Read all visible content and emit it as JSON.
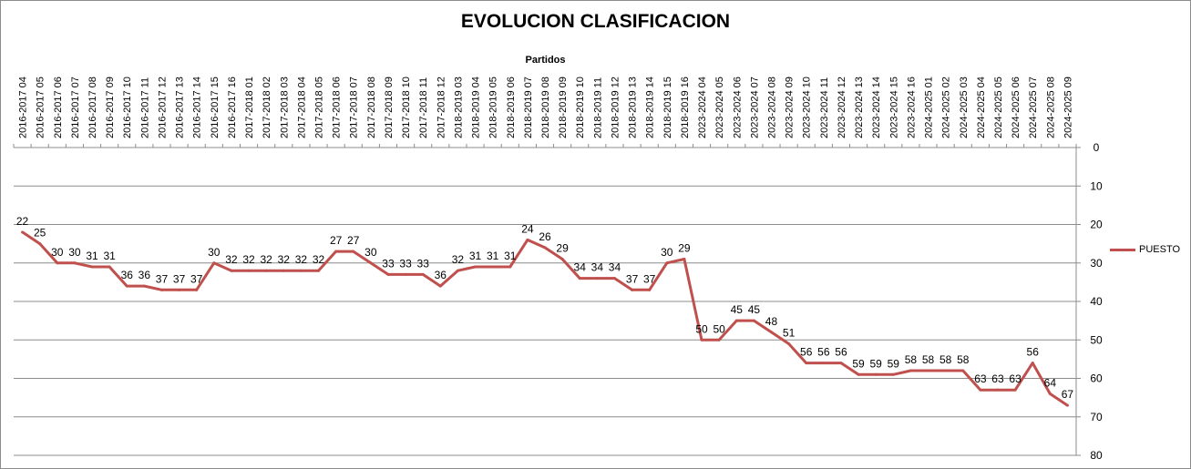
{
  "chart_data": {
    "type": "line",
    "title": "EVOLUCION CLASIFICACION",
    "xlabel": "Partidos",
    "ylabel": "",
    "ylim": [
      0,
      80
    ],
    "y_inverted": true,
    "y_axis_side": "right",
    "y_ticks": [
      0,
      10,
      20,
      30,
      40,
      50,
      60,
      70,
      80
    ],
    "grid": "horizontal",
    "legend_position": "right",
    "categories": [
      "2016-2017 04",
      "2016-2017 05",
      "2016-2017 06",
      "2016-2017 07",
      "2016-2017 08",
      "2016-2017 09",
      "2016-2017 10",
      "2016-2017 11",
      "2016-2017 12",
      "2016-2017 13",
      "2016-2017 14",
      "2016-2017 15",
      "2016-2017 16",
      "2017-2018 01",
      "2017-2018 02",
      "2017-2018 03",
      "2017-2018 04",
      "2017-2018 05",
      "2017-2018 06",
      "2017-2018 07",
      "2017-2018 08",
      "2017-2018 09",
      "2017-2018 10",
      "2017-2018 11",
      "2017-2018 12",
      "2018-2019 03",
      "2018-2019 04",
      "2018-2019 05",
      "2018-2019 06",
      "2018-2019 07",
      "2018-2019 08",
      "2018-2019 09",
      "2018-2019 10",
      "2018-2019 11",
      "2018-2019 12",
      "2018-2019 13",
      "2018-2019 14",
      "2018-2019 15",
      "2018-2019 16",
      "2023-2024 04",
      "2023-2024 05",
      "2023-2024 06",
      "2023-2024 07",
      "2023-2024 08",
      "2023-2024 09",
      "2023-2024 10",
      "2023-2024 11",
      "2023-2024 12",
      "2023-2024 13",
      "2023-2024 14",
      "2023-2024 15",
      "2023-2024 16",
      "2024-2025 01",
      "2024-2025 02",
      "2024-2025 03",
      "2024-2025 04",
      "2024-2025 05",
      "2024-2025 06",
      "2024-2025 07",
      "2024-2025 08",
      "2024-2025 09"
    ],
    "series": [
      {
        "name": "PUESTO",
        "color": "#c0504d",
        "values": [
          22,
          25,
          30,
          30,
          31,
          31,
          36,
          36,
          37,
          37,
          37,
          30,
          32,
          32,
          32,
          32,
          32,
          32,
          27,
          27,
          30,
          33,
          33,
          33,
          36,
          32,
          31,
          31,
          31,
          24,
          26,
          29,
          34,
          34,
          34,
          37,
          37,
          30,
          29,
          50,
          50,
          45,
          45,
          48,
          51,
          56,
          56,
          56,
          59,
          59,
          59,
          58,
          58,
          58,
          58,
          63,
          63,
          63,
          56,
          64,
          67
        ]
      }
    ]
  }
}
